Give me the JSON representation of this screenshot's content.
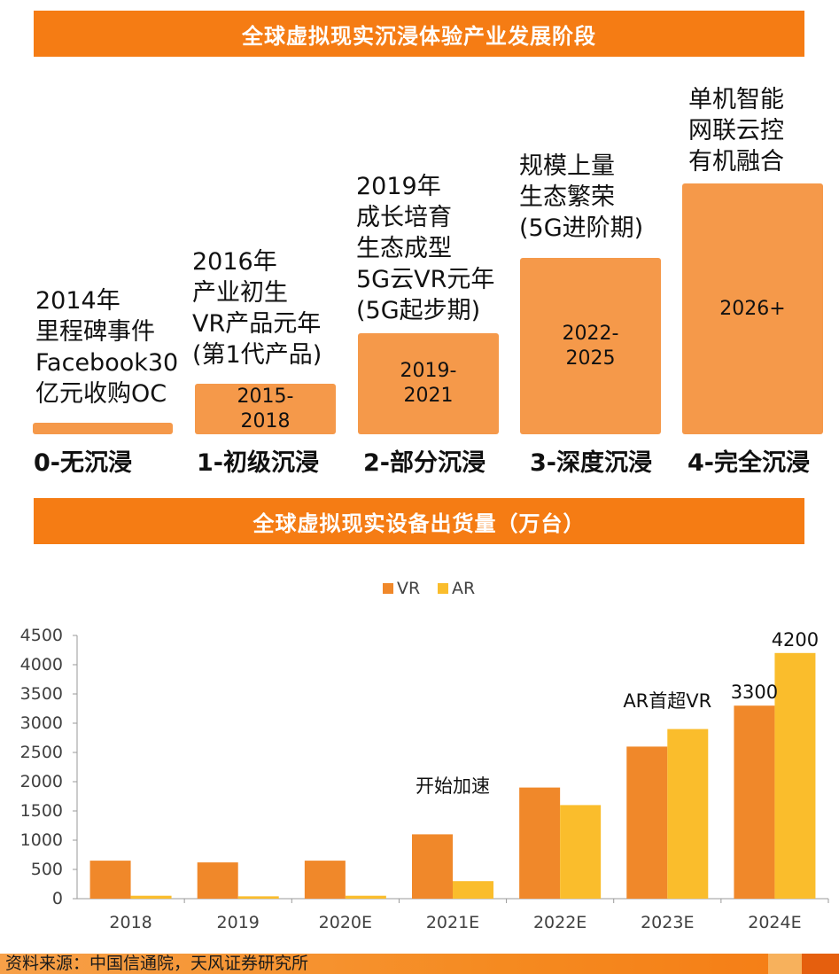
{
  "top_banner": "全球虚拟现实沉浸体验产业发展阶段",
  "stages": [
    {
      "desc": "2014年\n里程碑事件\nFacebook30\n亿元收购OC",
      "bar": "",
      "label": "0-无沉浸"
    },
    {
      "desc": "2016年\n产业初生\nVR产品元年\n(第1代产品)",
      "bar": "2015-\n2018",
      "label": "1-初级沉浸"
    },
    {
      "desc": "2019年\n成长培育\n生态成型\n5G云VR元年\n(5G起步期)",
      "bar": "2019-\n2021",
      "label": "2-部分沉浸"
    },
    {
      "desc": "规模上量\n生态繁荣\n(5G进阶期)",
      "bar": "2022-\n2025",
      "label": "3-深度沉浸"
    },
    {
      "desc": "单机智能\n网联云控\n有机融合",
      "bar": "2026+",
      "label": "4-完全沉浸"
    }
  ],
  "mid_banner": "全球虚拟现实设备出货量（万台）",
  "chart_data": {
    "type": "bar",
    "title": "全球虚拟现实设备出货量（万台）",
    "categories": [
      "2018",
      "2019",
      "2020E",
      "2021E",
      "2022E",
      "2023E",
      "2024E"
    ],
    "series": [
      {
        "name": "VR",
        "color": "#f0882a",
        "values": [
          650,
          620,
          650,
          1100,
          1900,
          2600,
          3300
        ]
      },
      {
        "name": "AR",
        "color": "#fabd2c",
        "values": [
          50,
          40,
          50,
          300,
          1600,
          2900,
          4200
        ]
      }
    ],
    "ylim": [
      0,
      4500
    ],
    "yticks": [
      "0",
      "500",
      "1000",
      "1500",
      "2000",
      "2500",
      "3000",
      "3500",
      "4000",
      "4500"
    ],
    "legend": "top-center",
    "annotations": [
      {
        "text": "开始加速",
        "category": "2021E",
        "value": 1700
      },
      {
        "text": "AR首超VR",
        "category": "2023E",
        "value": 3150
      },
      {
        "text": "3300",
        "category": "2024E",
        "series": "VR",
        "value": 3300
      },
      {
        "text": "4200",
        "category": "2024E",
        "series": "AR",
        "value": 4200
      }
    ]
  },
  "footer": {
    "source": "资料来源：中国信通院，天风证券研究所"
  }
}
